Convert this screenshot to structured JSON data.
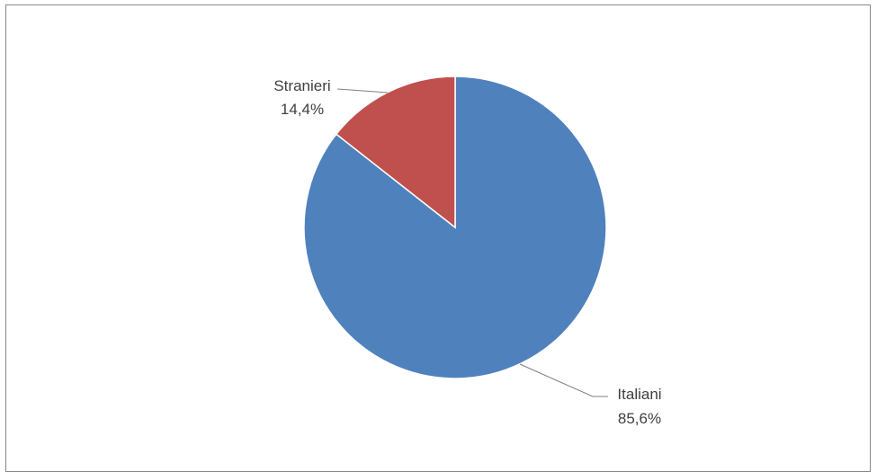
{
  "chart_data": {
    "type": "pie",
    "title": "",
    "slices": [
      {
        "label": "Italiani",
        "value": 85.6,
        "value_label": "85,6%",
        "color": "#4F81BD"
      },
      {
        "label": "Stranieri",
        "value": 14.4,
        "value_label": "14,4%",
        "color": "#C0504D"
      }
    ],
    "legend": "none",
    "data_labels": "outside-with-leader-lines"
  }
}
